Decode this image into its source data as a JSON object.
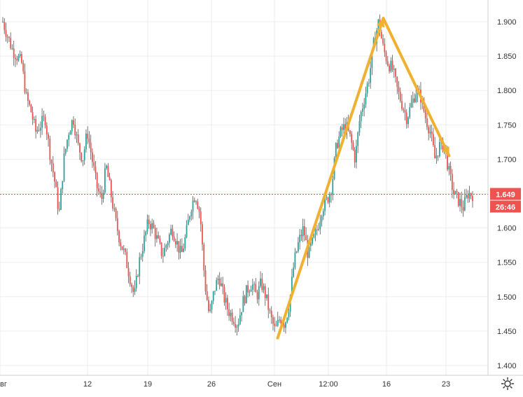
{
  "chart_data": {
    "type": "candlestick",
    "title": "",
    "xlabel": "",
    "ylabel": "",
    "ylim": [
      1.38,
      1.93
    ],
    "y_ticks": [
      "1.900",
      "1.850",
      "1.800",
      "1.750",
      "1.700",
      "1.650",
      "1.600",
      "1.550",
      "1.500",
      "1.450",
      "1.400"
    ],
    "x_ticks": [
      "вг",
      "12",
      "19",
      "26",
      "Сен",
      "12:00",
      "16",
      "23"
    ],
    "grid": true,
    "legend": "none",
    "price_path": [
      {
        "t": 0.0,
        "price": 1.9
      },
      {
        "t": 0.01,
        "price": 1.88
      },
      {
        "t": 0.02,
        "price": 1.86
      },
      {
        "t": 0.04,
        "price": 1.84
      },
      {
        "t": 0.05,
        "price": 1.79
      },
      {
        "t": 0.06,
        "price": 1.77
      },
      {
        "t": 0.07,
        "price": 1.74
      },
      {
        "t": 0.09,
        "price": 1.76
      },
      {
        "t": 0.1,
        "price": 1.71
      },
      {
        "t": 0.11,
        "price": 1.67
      },
      {
        "t": 0.12,
        "price": 1.62
      },
      {
        "t": 0.13,
        "price": 1.7
      },
      {
        "t": 0.14,
        "price": 1.74
      },
      {
        "t": 0.15,
        "price": 1.76
      },
      {
        "t": 0.16,
        "price": 1.72
      },
      {
        "t": 0.17,
        "price": 1.7
      },
      {
        "t": 0.18,
        "price": 1.74
      },
      {
        "t": 0.19,
        "price": 1.7
      },
      {
        "t": 0.2,
        "price": 1.66
      },
      {
        "t": 0.21,
        "price": 1.64
      },
      {
        "t": 0.22,
        "price": 1.69
      },
      {
        "t": 0.23,
        "price": 1.65
      },
      {
        "t": 0.24,
        "price": 1.61
      },
      {
        "t": 0.25,
        "price": 1.58
      },
      {
        "t": 0.26,
        "price": 1.56
      },
      {
        "t": 0.27,
        "price": 1.53
      },
      {
        "t": 0.28,
        "price": 1.5
      },
      {
        "t": 0.29,
        "price": 1.55
      },
      {
        "t": 0.3,
        "price": 1.58
      },
      {
        "t": 0.31,
        "price": 1.61
      },
      {
        "t": 0.32,
        "price": 1.6
      },
      {
        "t": 0.33,
        "price": 1.58
      },
      {
        "t": 0.34,
        "price": 1.56
      },
      {
        "t": 0.35,
        "price": 1.58
      },
      {
        "t": 0.36,
        "price": 1.6
      },
      {
        "t": 0.37,
        "price": 1.58
      },
      {
        "t": 0.38,
        "price": 1.56
      },
      {
        "t": 0.39,
        "price": 1.59
      },
      {
        "t": 0.4,
        "price": 1.63
      },
      {
        "t": 0.41,
        "price": 1.65
      },
      {
        "t": 0.42,
        "price": 1.62
      },
      {
        "t": 0.43,
        "price": 1.52
      },
      {
        "t": 0.44,
        "price": 1.47
      },
      {
        "t": 0.45,
        "price": 1.51
      },
      {
        "t": 0.46,
        "price": 1.53
      },
      {
        "t": 0.47,
        "price": 1.5
      },
      {
        "t": 0.48,
        "price": 1.48
      },
      {
        "t": 0.49,
        "price": 1.47
      },
      {
        "t": 0.5,
        "price": 1.46
      },
      {
        "t": 0.51,
        "price": 1.49
      },
      {
        "t": 0.52,
        "price": 1.51
      },
      {
        "t": 0.53,
        "price": 1.52
      },
      {
        "t": 0.54,
        "price": 1.5
      },
      {
        "t": 0.55,
        "price": 1.52
      },
      {
        "t": 0.56,
        "price": 1.5
      },
      {
        "t": 0.57,
        "price": 1.47
      },
      {
        "t": 0.58,
        "price": 1.45
      },
      {
        "t": 0.59,
        "price": 1.47
      },
      {
        "t": 0.6,
        "price": 1.46
      },
      {
        "t": 0.61,
        "price": 1.49
      },
      {
        "t": 0.62,
        "price": 1.55
      },
      {
        "t": 0.63,
        "price": 1.58
      },
      {
        "t": 0.64,
        "price": 1.6
      },
      {
        "t": 0.65,
        "price": 1.56
      },
      {
        "t": 0.66,
        "price": 1.58
      },
      {
        "t": 0.67,
        "price": 1.6
      },
      {
        "t": 0.68,
        "price": 1.63
      },
      {
        "t": 0.69,
        "price": 1.64
      },
      {
        "t": 0.7,
        "price": 1.66
      },
      {
        "t": 0.71,
        "price": 1.72
      },
      {
        "t": 0.72,
        "price": 1.74
      },
      {
        "t": 0.73,
        "price": 1.75
      },
      {
        "t": 0.74,
        "price": 1.73
      },
      {
        "t": 0.75,
        "price": 1.7
      },
      {
        "t": 0.76,
        "price": 1.76
      },
      {
        "t": 0.77,
        "price": 1.79
      },
      {
        "t": 0.78,
        "price": 1.82
      },
      {
        "t": 0.79,
        "price": 1.87
      },
      {
        "t": 0.8,
        "price": 1.9
      },
      {
        "t": 0.81,
        "price": 1.86
      },
      {
        "t": 0.82,
        "price": 1.84
      },
      {
        "t": 0.83,
        "price": 1.83
      },
      {
        "t": 0.84,
        "price": 1.8
      },
      {
        "t": 0.85,
        "price": 1.78
      },
      {
        "t": 0.86,
        "price": 1.76
      },
      {
        "t": 0.87,
        "price": 1.78
      },
      {
        "t": 0.88,
        "price": 1.8
      },
      {
        "t": 0.89,
        "price": 1.79
      },
      {
        "t": 0.9,
        "price": 1.76
      },
      {
        "t": 0.91,
        "price": 1.74
      },
      {
        "t": 0.92,
        "price": 1.7
      },
      {
        "t": 0.93,
        "price": 1.72
      },
      {
        "t": 0.94,
        "price": 1.72
      },
      {
        "t": 0.95,
        "price": 1.68
      },
      {
        "t": 0.96,
        "price": 1.65
      },
      {
        "t": 0.97,
        "price": 1.64
      },
      {
        "t": 0.98,
        "price": 1.63
      },
      {
        "t": 0.99,
        "price": 1.65
      },
      {
        "t": 1.0,
        "price": 1.649
      }
    ],
    "annotations": [
      {
        "type": "arrow",
        "from": {
          "t": 0.585,
          "price": 1.44
        },
        "to": {
          "t": 0.81,
          "price": 1.905
        }
      },
      {
        "type": "arrow",
        "from": {
          "t": 0.81,
          "price": 1.905
        },
        "to": {
          "t": 0.95,
          "price": 1.705
        }
      }
    ],
    "last_price_label": "1.649",
    "last_price_value": 1.649,
    "countdown_label": "26:46",
    "colors": {
      "up": "#26a69a",
      "down": "#ef5350",
      "wick": "#555555",
      "arrow": "#f0b030",
      "price_line": "#ef5350",
      "grid": "#eeeeee",
      "axis_text": "#333333"
    }
  },
  "toolbar": {
    "settings_icon": "gear-icon"
  }
}
